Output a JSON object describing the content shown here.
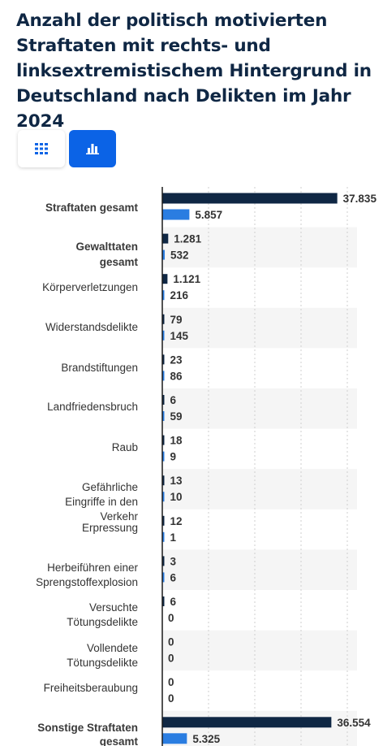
{
  "title": "Anzahl der politisch motivierten Straftaten mit rechts- und linksextremistischem Hintergrund in Deutschland nach Delikten im Jahr 2024",
  "view_toggle": {
    "table_icon": "grid-icon",
    "chart_icon": "bar-chart-icon",
    "active": "chart"
  },
  "colors": {
    "series_rechts": "#0f2744",
    "series_links": "#2a7de1",
    "band": "#f5f5f5",
    "grid": "#cfcfcf",
    "axis": "#1a1a1a",
    "toggle_active": "#0b63e6"
  },
  "chart_data": {
    "type": "bar",
    "orientation": "horizontal",
    "categories": [
      "Straftaten gesamt",
      "Gewalttaten gesamt",
      "Körperverletzungen",
      "Widerstandsdelikte",
      "Brandstiftungen",
      "Landfriedensbruch",
      "Raub",
      "Gefährliche Eingriffe in den Verkehr",
      "Erpressung",
      "Herbeiführen einer Sprengstoffexplosion",
      "Versuchte Tötungsdelikte",
      "Vollendete Tötungsdelikte",
      "Freiheitsberaubung",
      "Sonstige Straftaten gesamt"
    ],
    "bold_categories": [
      "Straftaten gesamt",
      "Gewalttaten gesamt",
      "Sonstige Straftaten gesamt"
    ],
    "series": [
      {
        "values": [
          37835,
          1281,
          1121,
          79,
          23,
          6,
          18,
          13,
          12,
          3,
          6,
          0,
          0,
          36554
        ],
        "labels": [
          "37.835",
          "1.281",
          "1.121",
          "79",
          "23",
          "6",
          "18",
          "13",
          "12",
          "3",
          "6",
          "0",
          "0",
          "36.554"
        ]
      },
      {
        "values": [
          5857,
          532,
          216,
          145,
          86,
          59,
          9,
          10,
          1,
          6,
          0,
          0,
          0,
          5325
        ],
        "labels": [
          "5.857",
          "532",
          "216",
          "145",
          "86",
          "59",
          "9",
          "10",
          "1",
          "6",
          "0",
          "0",
          "0",
          "5.325"
        ]
      }
    ],
    "xlim": [
      0,
      40000
    ],
    "gridlines_x": [
      10000,
      20000,
      30000,
      40000
    ],
    "grid": true,
    "alternating_bands": true,
    "legend": "none"
  }
}
